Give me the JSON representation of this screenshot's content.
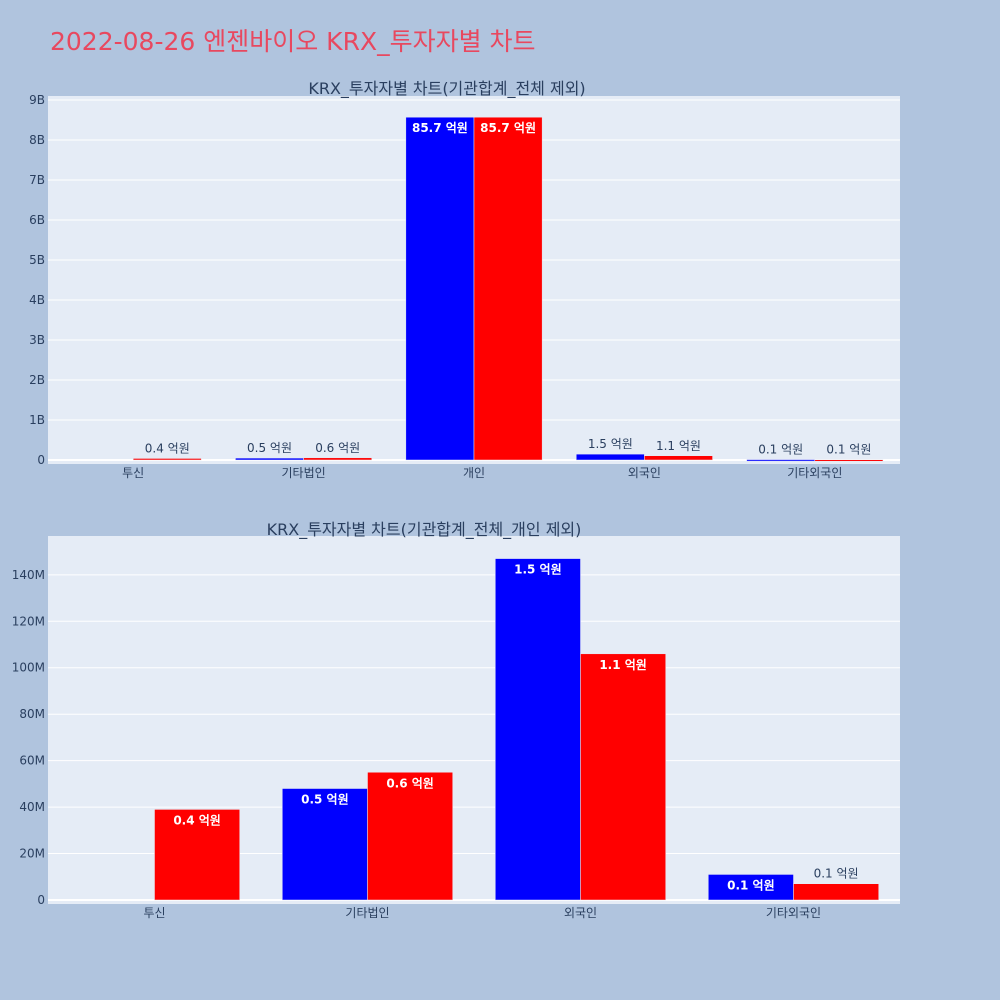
{
  "page": {
    "title": "2022-08-26 엔젠바이오 KRX_투자자별 차트"
  },
  "colors": {
    "background": "#b0c4de",
    "plot_bg": "#e5ecf6",
    "grid": "#ffffff",
    "title": "#e8485f",
    "text": "#2a3f5f",
    "buy": "#0000ff",
    "sell": "#ff0000"
  },
  "chart_data": [
    {
      "type": "bar",
      "title": "KRX_투자자별 차트(기관합계_전체 제외)",
      "categories": [
        "투신",
        "기타법인",
        "개인",
        "외국인",
        "기타외국인"
      ],
      "ylim": [
        0,
        9000000000
      ],
      "yticks": [
        0,
        1000000000,
        2000000000,
        3000000000,
        4000000000,
        5000000000,
        6000000000,
        7000000000,
        8000000000,
        9000000000
      ],
      "ytick_labels": [
        "0",
        "1B",
        "2B",
        "3B",
        "4B",
        "5B",
        "6B",
        "7B",
        "8B",
        "9B"
      ],
      "grid": true,
      "series": [
        {
          "color": "#0000ff",
          "values": [
            0,
            48000000,
            8570000000,
            147000000,
            11000000
          ],
          "labels": [
            "",
            "0.5 억원",
            "85.7 억원",
            "1.5 억원",
            "0.1 억원"
          ]
        },
        {
          "color": "#ff0000",
          "values": [
            39000000,
            55000000,
            8570000000,
            106000000,
            7000000
          ],
          "labels": [
            "0.4 억원",
            "0.6 억원",
            "85.7 억원",
            "1.1 억원",
            "0.1 억원"
          ]
        }
      ]
    },
    {
      "type": "bar",
      "title": "KRX_투자자별 차트(기관합계_전체_개인 제외)",
      "categories": [
        "투신",
        "기타법인",
        "외국인",
        "기타외국인"
      ],
      "ylim": [
        0,
        155000000
      ],
      "yticks": [
        0,
        20000000,
        40000000,
        60000000,
        80000000,
        100000000,
        120000000,
        140000000
      ],
      "ytick_labels": [
        "0",
        "20M",
        "40M",
        "60M",
        "80M",
        "100M",
        "120M",
        "140M"
      ],
      "grid": true,
      "series": [
        {
          "color": "#0000ff",
          "values": [
            0,
            48000000,
            147000000,
            11000000
          ],
          "labels": [
            "",
            "0.5 억원",
            "1.5 억원",
            "0.1 억원"
          ]
        },
        {
          "color": "#ff0000",
          "values": [
            39000000,
            55000000,
            106000000,
            7000000
          ],
          "labels": [
            "0.4 억원",
            "0.6 억원",
            "1.1 억원",
            "0.1 억원"
          ]
        }
      ]
    }
  ]
}
